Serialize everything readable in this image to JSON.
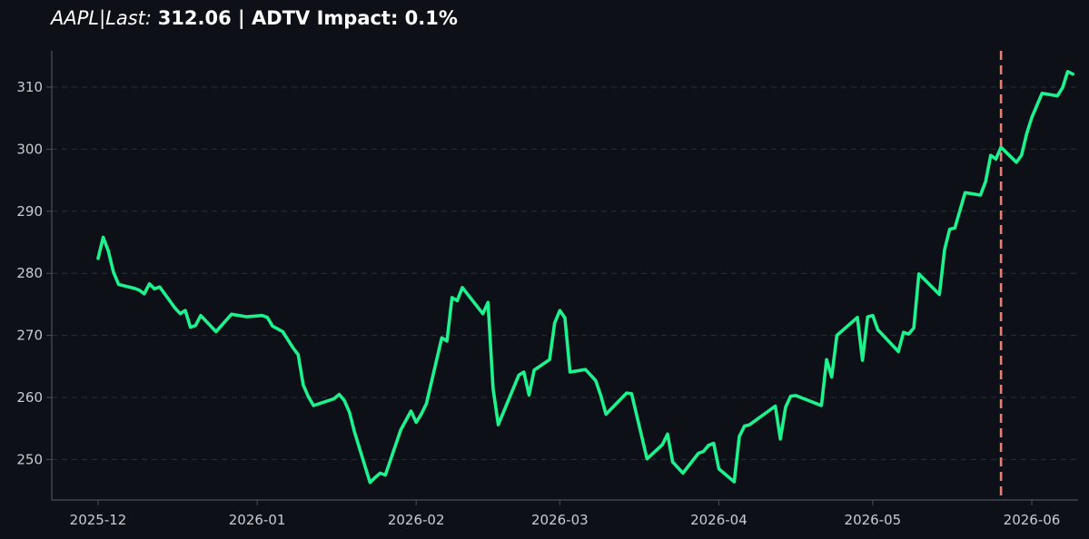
{
  "title": {
    "italic_part": "AAPL|Last:",
    "bold_part": "312.06 | ADTV Impact: 0.1%"
  },
  "colors": {
    "background": "#0d1117",
    "line": "#1ef28f",
    "marker": "#f07b74",
    "axis": "#4a5058",
    "grid": "#2a3038",
    "tick_text": "#c9cdd2"
  },
  "chart_data": {
    "type": "line",
    "title": "AAPL|Last: 312.06 | ADTV Impact: 0.1%",
    "xlabel": "",
    "ylabel": "",
    "xlim": [
      "2025-11-22",
      "2026-06-09"
    ],
    "ylim": [
      243.2,
      315.6
    ],
    "grid": "horizontal dashed",
    "x_ticks": [
      "2025-12",
      "2026-01",
      "2026-02",
      "2026-03",
      "2026-04",
      "2026-05",
      "2026-06"
    ],
    "y_ticks": [
      250,
      260,
      270,
      280,
      290,
      300,
      310
    ],
    "vline": {
      "x": "2026-05-26",
      "style": "dashed"
    },
    "series": [
      {
        "points": [
          [
            "2025-12-01",
            282.4
          ],
          [
            "2025-12-02",
            285.8
          ],
          [
            "2025-12-03",
            283.6
          ],
          [
            "2025-12-04",
            280.2
          ],
          [
            "2025-12-05",
            278.2
          ],
          [
            "2025-12-08",
            277.6
          ],
          [
            "2025-12-09",
            277.3
          ],
          [
            "2025-12-10",
            276.7
          ],
          [
            "2025-12-11",
            278.3
          ],
          [
            "2025-12-12",
            277.5
          ],
          [
            "2025-12-13",
            277.8
          ],
          [
            "2025-12-16",
            274.4
          ],
          [
            "2025-12-17",
            273.5
          ],
          [
            "2025-12-18",
            274.0
          ],
          [
            "2025-12-19",
            271.3
          ],
          [
            "2025-12-20",
            271.6
          ],
          [
            "2025-12-21",
            273.2
          ],
          [
            "2025-12-24",
            270.6
          ],
          [
            "2025-12-27",
            273.4
          ],
          [
            "2025-12-30",
            273.0
          ],
          [
            "2026-01-02",
            273.2
          ],
          [
            "2026-01-03",
            272.9
          ],
          [
            "2026-01-04",
            271.5
          ],
          [
            "2026-01-06",
            270.6
          ],
          [
            "2026-01-08",
            268.0
          ],
          [
            "2026-01-09",
            266.9
          ],
          [
            "2026-01-10",
            262.0
          ],
          [
            "2026-01-11",
            260.1
          ],
          [
            "2026-01-12",
            258.7
          ],
          [
            "2026-01-16",
            259.8
          ],
          [
            "2026-01-17",
            260.5
          ],
          [
            "2026-01-18",
            259.5
          ],
          [
            "2026-01-19",
            257.6
          ],
          [
            "2026-01-20",
            254.4
          ],
          [
            "2026-01-23",
            246.3
          ],
          [
            "2026-01-24",
            247.1
          ],
          [
            "2026-01-25",
            247.8
          ],
          [
            "2026-01-26",
            247.5
          ],
          [
            "2026-01-29",
            254.8
          ],
          [
            "2026-01-31",
            257.8
          ],
          [
            "2026-02-01",
            256.0
          ],
          [
            "2026-02-02",
            257.3
          ],
          [
            "2026-02-03",
            259.0
          ],
          [
            "2026-02-06",
            269.6
          ],
          [
            "2026-02-07",
            269.1
          ],
          [
            "2026-02-08",
            276.1
          ],
          [
            "2026-02-09",
            275.6
          ],
          [
            "2026-02-10",
            277.7
          ],
          [
            "2026-02-14",
            273.5
          ],
          [
            "2026-02-15",
            275.3
          ],
          [
            "2026-02-16",
            261.4
          ],
          [
            "2026-02-17",
            255.6
          ],
          [
            "2026-02-21",
            263.6
          ],
          [
            "2026-02-22",
            264.1
          ],
          [
            "2026-02-23",
            260.4
          ],
          [
            "2026-02-24",
            264.4
          ],
          [
            "2026-02-27",
            266.1
          ],
          [
            "2026-02-28",
            272.0
          ],
          [
            "2026-03-01",
            274.0
          ],
          [
            "2026-03-02",
            272.8
          ],
          [
            "2026-03-03",
            264.1
          ],
          [
            "2026-03-06",
            264.5
          ],
          [
            "2026-03-08",
            262.7
          ],
          [
            "2026-03-09",
            260.3
          ],
          [
            "2026-03-10",
            257.3
          ],
          [
            "2026-03-14",
            260.7
          ],
          [
            "2026-03-15",
            260.6
          ],
          [
            "2026-03-18",
            250.1
          ],
          [
            "2026-03-21",
            252.4
          ],
          [
            "2026-03-22",
            254.1
          ],
          [
            "2026-03-23",
            249.6
          ],
          [
            "2026-03-25",
            247.8
          ],
          [
            "2026-03-28",
            251.0
          ],
          [
            "2026-03-29",
            251.3
          ],
          [
            "2026-03-30",
            252.3
          ],
          [
            "2026-03-31",
            252.6
          ],
          [
            "2026-04-01",
            248.5
          ],
          [
            "2026-04-04",
            246.4
          ],
          [
            "2026-04-05",
            253.7
          ],
          [
            "2026-04-06",
            255.4
          ],
          [
            "2026-04-07",
            255.6
          ],
          [
            "2026-04-12",
            258.6
          ],
          [
            "2026-04-13",
            253.3
          ],
          [
            "2026-04-14",
            258.4
          ],
          [
            "2026-04-15",
            260.2
          ],
          [
            "2026-04-16",
            260.3
          ],
          [
            "2026-04-21",
            258.7
          ],
          [
            "2026-04-22",
            266.1
          ],
          [
            "2026-04-23",
            263.3
          ],
          [
            "2026-04-24",
            270.0
          ],
          [
            "2026-04-28",
            272.9
          ],
          [
            "2026-04-29",
            266.0
          ],
          [
            "2026-04-30",
            273.0
          ],
          [
            "2026-05-01",
            273.2
          ],
          [
            "2026-05-02",
            270.9
          ],
          [
            "2026-05-06",
            267.4
          ],
          [
            "2026-05-07",
            270.5
          ],
          [
            "2026-05-08",
            270.2
          ],
          [
            "2026-05-09",
            271.2
          ],
          [
            "2026-05-10",
            279.9
          ],
          [
            "2026-05-14",
            276.6
          ],
          [
            "2026-05-15",
            283.8
          ],
          [
            "2026-05-16",
            287.1
          ],
          [
            "2026-05-17",
            287.3
          ],
          [
            "2026-05-19",
            293.0
          ],
          [
            "2026-05-22",
            292.6
          ],
          [
            "2026-05-23",
            294.8
          ],
          [
            "2026-05-24",
            299.0
          ],
          [
            "2026-05-25",
            298.4
          ],
          [
            "2026-05-26",
            300.3
          ],
          [
            "2026-05-29",
            297.9
          ],
          [
            "2026-05-30",
            299.0
          ],
          [
            "2026-05-31",
            302.5
          ],
          [
            "2026-06-01",
            305.1
          ],
          [
            "2026-06-03",
            309.0
          ],
          [
            "2026-06-06",
            308.6
          ],
          [
            "2026-06-07",
            309.9
          ],
          [
            "2026-06-08",
            312.5
          ],
          [
            "2026-06-09",
            312.1
          ]
        ]
      }
    ]
  }
}
